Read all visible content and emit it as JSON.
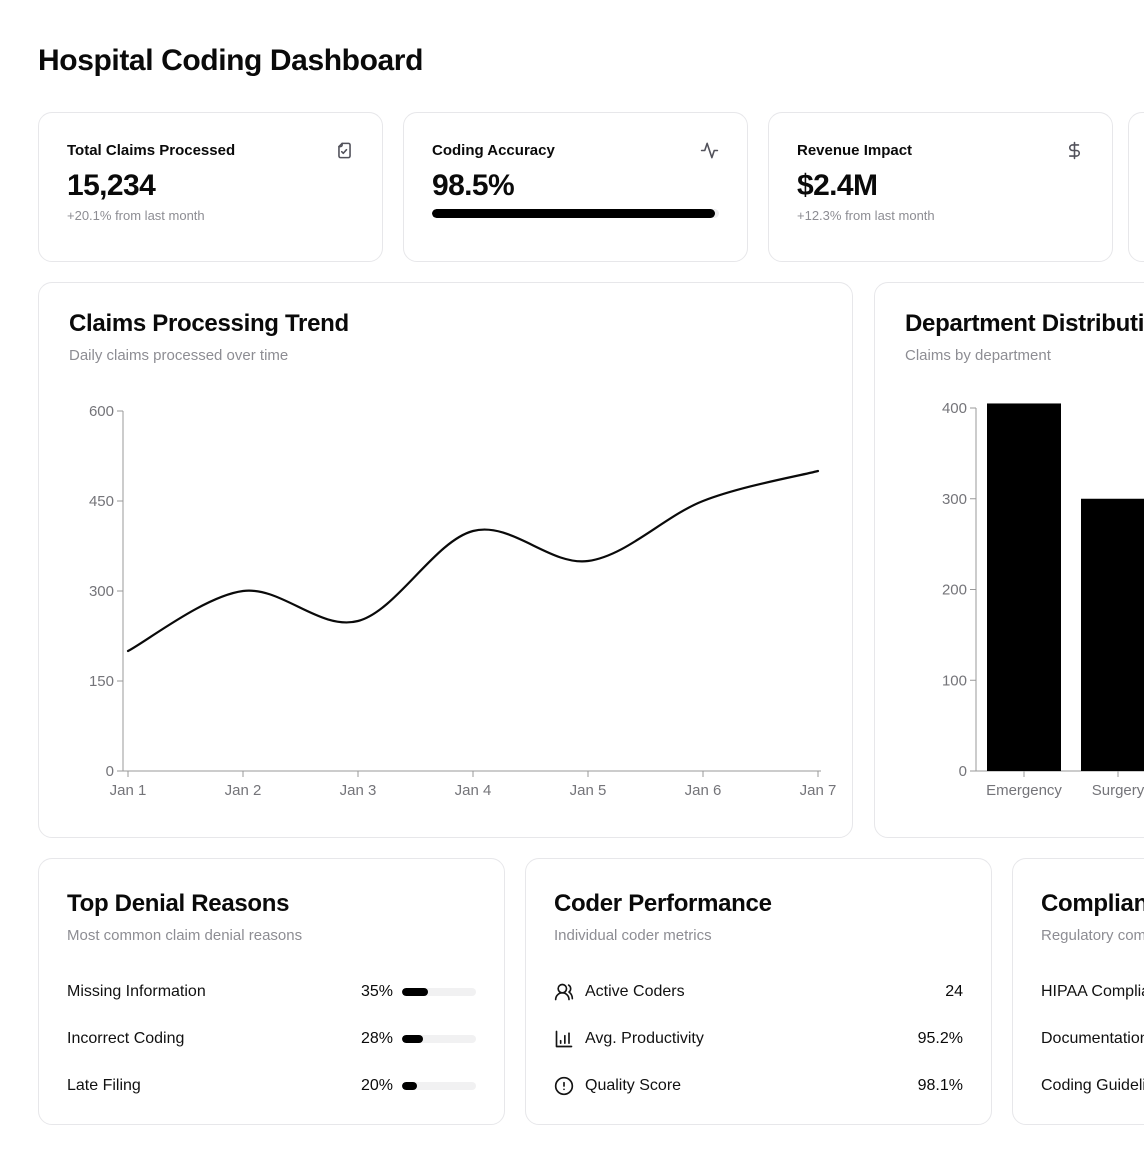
{
  "page_title": "Hospital Coding Dashboard",
  "stat_cards": [
    {
      "title": "Total Claims Processed",
      "value": "15,234",
      "change": "+20.1% from last month",
      "icon": "file-check-icon"
    },
    {
      "title": "Coding Accuracy",
      "value": "98.5%",
      "progress_pct": 98.5,
      "icon": "activity-icon"
    },
    {
      "title": "Revenue Impact",
      "value": "$2.4M",
      "change": "+12.3% from last month",
      "icon": "dollar-icon"
    }
  ],
  "chart_data": [
    {
      "type": "line",
      "title": "Claims Processing Trend",
      "subtitle": "Daily claims processed over time",
      "x": [
        "Jan 1",
        "Jan 2",
        "Jan 3",
        "Jan 4",
        "Jan 5",
        "Jan 6",
        "Jan 7"
      ],
      "values": [
        200,
        300,
        250,
        400,
        350,
        450,
        500
      ],
      "ylim": [
        0,
        600
      ],
      "yticks": [
        0,
        150,
        300,
        450,
        600
      ],
      "grid": false,
      "legend": "none",
      "line_color": "#0a0a0a"
    },
    {
      "type": "bar",
      "title": "Department Distribution",
      "subtitle": "Claims by department",
      "categories": [
        "Emergency",
        "Surgery"
      ],
      "values": [
        405,
        300
      ],
      "ylim": [
        0,
        400
      ],
      "yticks": [
        0,
        100,
        200,
        300,
        400
      ],
      "grid": false,
      "legend": "none",
      "bar_color": "#000000"
    }
  ],
  "denial_card": {
    "title": "Top Denial Reasons",
    "subtitle": "Most common claim denial reasons",
    "items": [
      {
        "label": "Missing Information",
        "pct": "35%",
        "pct_value": 35
      },
      {
        "label": "Incorrect Coding",
        "pct": "28%",
        "pct_value": 28
      },
      {
        "label": "Late Filing",
        "pct": "20%",
        "pct_value": 20
      }
    ]
  },
  "coder_card": {
    "title": "Coder Performance",
    "subtitle": "Individual coder metrics",
    "items": [
      {
        "icon": "users-icon",
        "label": "Active Coders",
        "value": "24"
      },
      {
        "icon": "bar-chart-icon",
        "label": "Avg. Productivity",
        "value": "95.2%"
      },
      {
        "icon": "alert-circle-icon",
        "label": "Quality Score",
        "value": "98.1%"
      }
    ]
  },
  "compliance_card": {
    "title": "Compliance Status",
    "subtitle": "Regulatory compliance",
    "items": [
      {
        "label": "HIPAA Compliance"
      },
      {
        "label": "Documentation"
      },
      {
        "label": "Coding Guidelines"
      }
    ]
  },
  "colors": {
    "accent": "#000000",
    "muted_text": "#8d8d93",
    "axis": "#999999",
    "axis_text": "#747479"
  }
}
